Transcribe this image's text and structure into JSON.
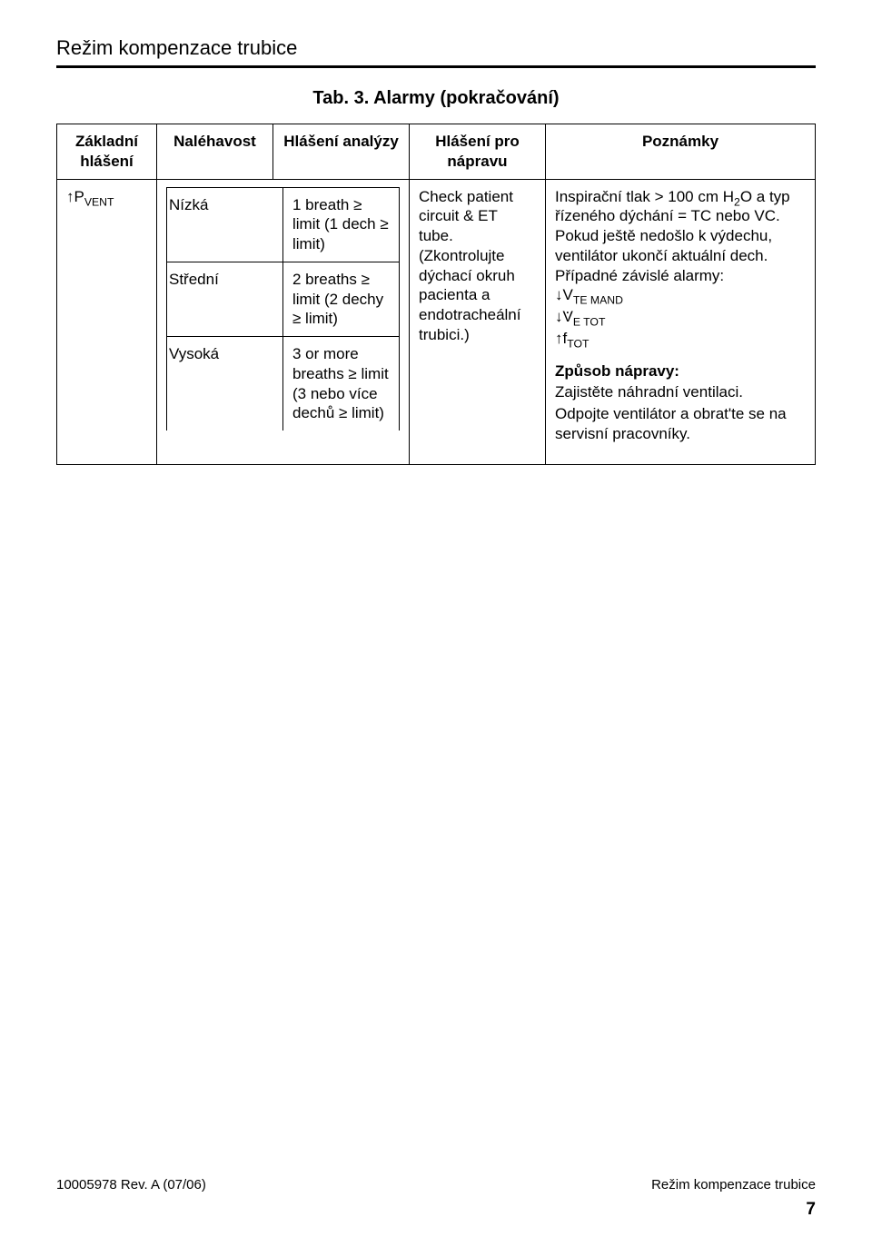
{
  "header": {
    "section_title": "Režim kompenzace trubice"
  },
  "table": {
    "caption": "Tab. 3. Alarmy (pokračování)",
    "columns": {
      "base": "Základní hlášení",
      "urgency": "Naléhavost",
      "analysis": "Hlášení analýzy",
      "correction": "Hlášení pro nápravu",
      "notes": "Poznámky"
    },
    "row": {
      "base_alarm_prefix": "↑",
      "base_alarm_symbol": "P",
      "base_alarm_sub": "VENT",
      "urgency_levels": {
        "low": "Nízká",
        "med": "Střední",
        "high": "Vysoká"
      },
      "analysis_msgs": {
        "low": "1 breath ≥ limit (1 dech ≥ limit)",
        "med": "2 breaths ≥ limit (2 dechy ≥ limit)",
        "high": "3 or more breaths ≥ limit (3 nebo více dechů ≥ limit)"
      },
      "correction_msg": "Check patient circuit & ET tube. (Zkontrolujte dýchací okruh pacienta a endotracheální trubici.)",
      "notes_main_1": "Inspirační tlak > 100 cm H",
      "notes_main_sub": "2",
      "notes_main_2": "O a typ řízeného dýchání = TC nebo VC. Pokud ještě nedošlo k výdechu, ventilátor ukončí aktuální dech. Případné závislé alarmy:",
      "dep_alarms": {
        "a1_sym": "V",
        "a1_sub": "TE MAND",
        "a2_sym": "V",
        "a2_sub": "E TOT",
        "a3_sym": "f",
        "a3_sub": "TOT"
      },
      "remedy_head": "Způsob nápravy:",
      "remedy_1": "Zajistěte náhradní ventilaci.",
      "remedy_2": "Odpojte ventilátor a obrat'te se na servisní pracovníky."
    }
  },
  "footer": {
    "rev": "10005978 Rev. A (07/06)",
    "right": "Režim kompenzace trubice",
    "page": "7"
  }
}
